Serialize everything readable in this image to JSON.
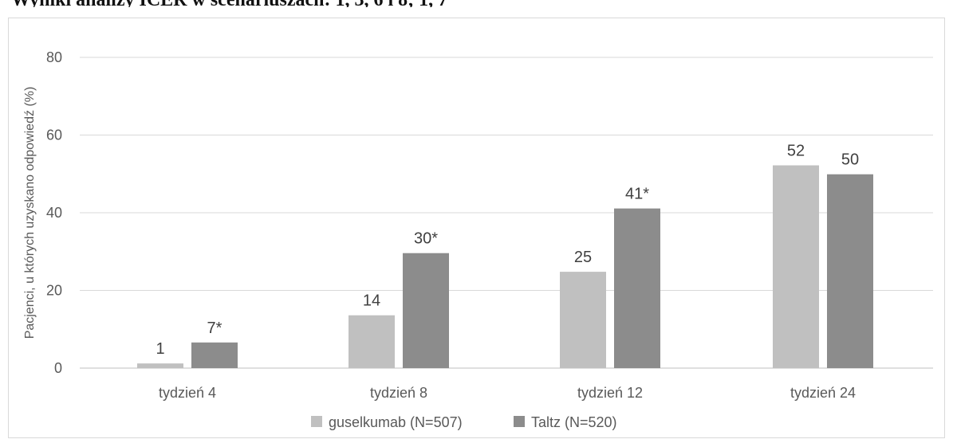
{
  "page": {
    "top_text": "Wyniki analizy ICER w scenariuszach: 1, 3, 6 i 8; 1, 7"
  },
  "chart_data": {
    "type": "bar",
    "title": "",
    "xlabel": "",
    "ylabel": "Pacjenci, u których uzyskano odpowiedź (%)",
    "categories": [
      "tydzień 4",
      "tydzień 8",
      "tydzień 12",
      "tydzień 24"
    ],
    "series": [
      {
        "name": "guselkumab (N=507)",
        "values": [
          1.2,
          13.6,
          24.8,
          52.2
        ],
        "labels": [
          "1",
          "14",
          "25",
          "52"
        ],
        "color": "#c0c0c0"
      },
      {
        "name": "Taltz (N=520)",
        "values": [
          6.6,
          29.6,
          41.1,
          49.9
        ],
        "labels": [
          "7*",
          "30*",
          "41*",
          "50"
        ],
        "color": "#8c8c8c"
      }
    ],
    "ylim": [
      0,
      80
    ],
    "yticks": [
      0,
      20,
      40,
      60,
      80
    ],
    "grid": true,
    "legend_position": "bottom"
  }
}
